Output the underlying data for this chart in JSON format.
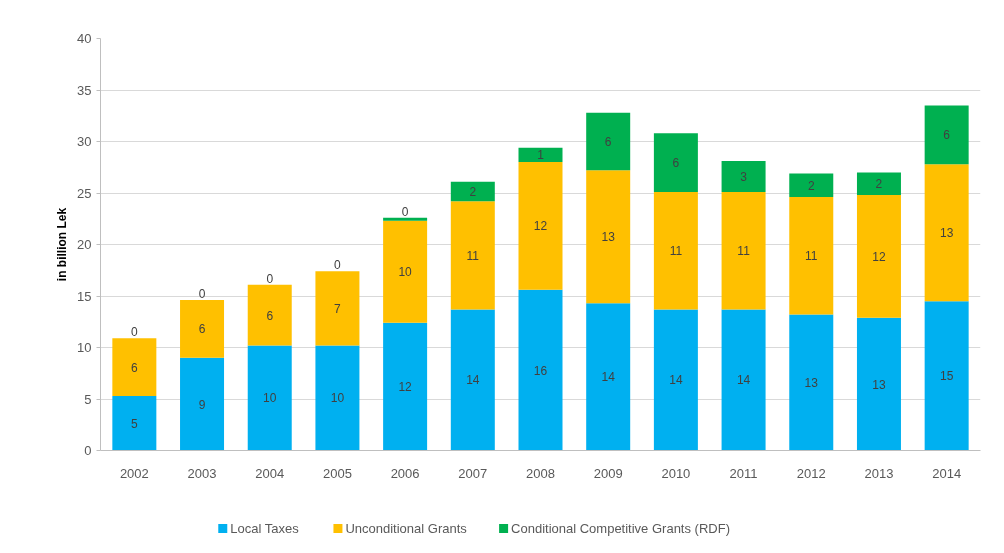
{
  "chart_data": {
    "type": "bar",
    "stacked": true,
    "ylabel": "in billion Lek",
    "categories": [
      "2002",
      "2003",
      "2004",
      "2005",
      "2006",
      "2007",
      "2008",
      "2009",
      "2010",
      "2011",
      "2012",
      "2013",
      "2014"
    ],
    "series": [
      {
        "name": "Local Taxes",
        "color": "#00b0f0",
        "values": [
          5.3,
          9.0,
          10.2,
          10.2,
          12.4,
          13.7,
          15.6,
          14.3,
          13.7,
          13.7,
          13.2,
          12.9,
          14.5
        ],
        "value_labels": [
          "5",
          "9",
          "10",
          "10",
          "12",
          "14",
          "16",
          "14",
          "14",
          "14",
          "13",
          "13",
          "15"
        ]
      },
      {
        "name": "Unconditional Grants",
        "color": "#ffc000",
        "values": [
          5.6,
          5.6,
          5.9,
          7.2,
          9.9,
          10.5,
          12.4,
          12.9,
          11.4,
          11.4,
          11.4,
          11.9,
          13.3
        ],
        "value_labels": [
          "6",
          "6",
          "6",
          "7",
          "10",
          "11",
          "12",
          "13",
          "11",
          "11",
          "11",
          "12",
          "13"
        ]
      },
      {
        "name": "Conditional Competitive Grants (RDF)",
        "color": "#00b050",
        "values": [
          0,
          0,
          0,
          0,
          0.3,
          1.9,
          1.4,
          5.6,
          5.7,
          3.0,
          2.3,
          2.2,
          5.7
        ],
        "value_labels": [
          "0",
          "0",
          "0",
          "0",
          "0",
          "2",
          "1",
          "6",
          "6",
          "3",
          "2",
          "2",
          "6"
        ]
      }
    ],
    "ylim": [
      0,
      40
    ],
    "yticks": [
      0,
      5,
      10,
      15,
      20,
      25,
      30,
      35,
      40
    ],
    "grid": "y",
    "legend": "bottom"
  }
}
